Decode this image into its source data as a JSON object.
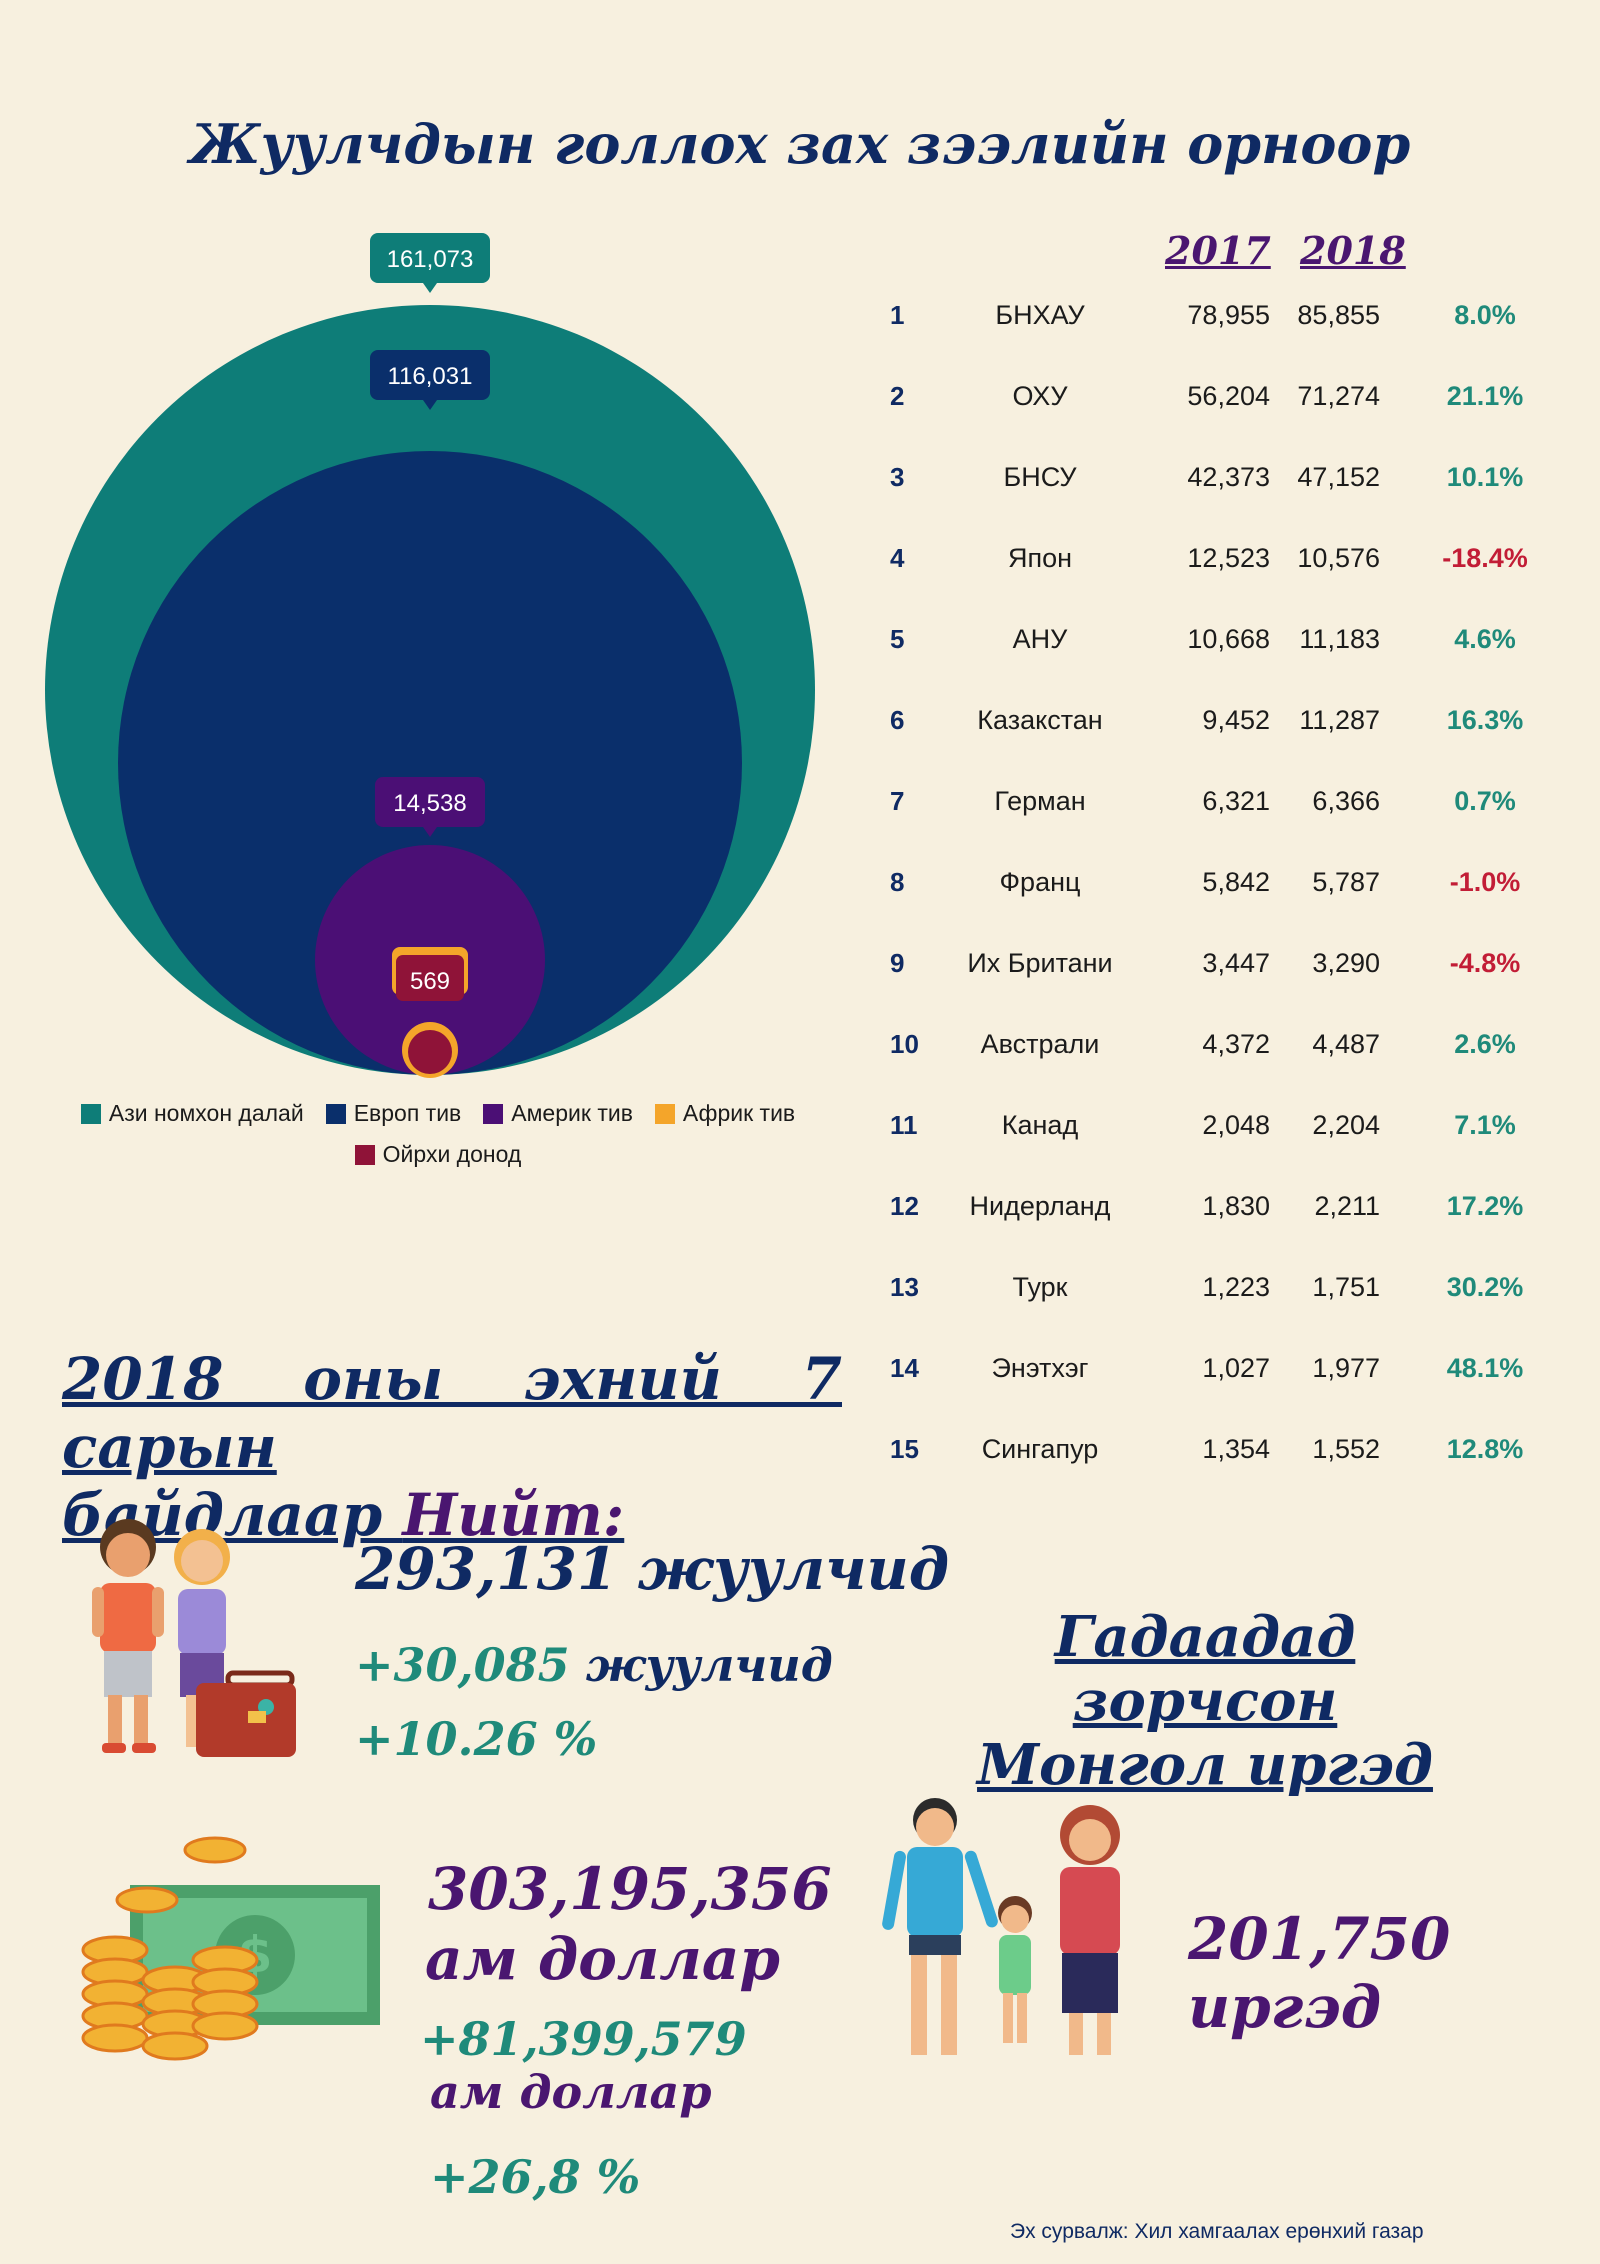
{
  "title": "Жуулчдын голлох зах зээлийн орноор",
  "chart_data": {
    "type": "bubble",
    "series": [
      {
        "name": "Ази номхон далай",
        "value": 161073,
        "color": "#0e7d78"
      },
      {
        "name": "Европ тив",
        "value": 116031,
        "color": "#0a2f6b"
      },
      {
        "name": "Америк тив",
        "value": 14538,
        "color": "#4b0f75"
      },
      {
        "name": "Африк тив",
        "value": "",
        "color": "#f4a52a"
      },
      {
        "name": "Ойрхи донод",
        "value": 569,
        "color": "#8f1338"
      }
    ],
    "labels": [
      "161,073",
      "116,031",
      "14,538",
      "569"
    ]
  },
  "table": {
    "col_2017": "2017",
    "col_2018": "2018",
    "rows": [
      {
        "rank": "1",
        "country": "БНХАУ",
        "v2017": "78,955",
        "v2018": "85,855",
        "pct": "8.0%"
      },
      {
        "rank": "2",
        "country": "ОХУ",
        "v2017": "56,204",
        "v2018": "71,274",
        "pct": "21.1%"
      },
      {
        "rank": "3",
        "country": "БНСУ",
        "v2017": "42,373",
        "v2018": "47,152",
        "pct": "10.1%"
      },
      {
        "rank": "4",
        "country": "Япон",
        "v2017": "12,523",
        "v2018": "10,576",
        "pct": "-18.4%"
      },
      {
        "rank": "5",
        "country": "АНУ",
        "v2017": "10,668",
        "v2018": "11,183",
        "pct": "4.6%"
      },
      {
        "rank": "6",
        "country": "Казакстан",
        "v2017": "9,452",
        "v2018": "11,287",
        "pct": "16.3%"
      },
      {
        "rank": "7",
        "country": "Герман",
        "v2017": "6,321",
        "v2018": "6,366",
        "pct": "0.7%"
      },
      {
        "rank": "8",
        "country": "Франц",
        "v2017": "5,842",
        "v2018": "5,787",
        "pct": "-1.0%"
      },
      {
        "rank": "9",
        "country": "Их Британи",
        "v2017": "3,447",
        "v2018": "3,290",
        "pct": "-4.8%"
      },
      {
        "rank": "10",
        "country": "Австрали",
        "v2017": "4,372",
        "v2018": "4,487",
        "pct": "2.6%"
      },
      {
        "rank": "11",
        "country": "Канад",
        "v2017": "2,048",
        "v2018": "2,204",
        "pct": "7.1%"
      },
      {
        "rank": "12",
        "country": "Нидерланд",
        "v2017": "1,830",
        "v2018": "2,211",
        "pct": "17.2%"
      },
      {
        "rank": "13",
        "country": "Турк",
        "v2017": "1,223",
        "v2018": "1,751",
        "pct": "30.2%"
      },
      {
        "rank": "14",
        "country": "Энэтхэг",
        "v2017": "1,027",
        "v2018": "1,977",
        "pct": "48.1%"
      },
      {
        "rank": "15",
        "country": "Сингапур",
        "v2017": "1,354",
        "v2018": "1,552",
        "pct": "12.8%"
      }
    ]
  },
  "summary": {
    "title_line1": "2018 оны эхний 7 сарын",
    "title_line2a": "байдлаар ",
    "title_line2b": "Нийт:",
    "tourists": "293,131 жуулчид",
    "tourists_plus": "+30,085",
    "tourists_plus_unit": "жуулчид",
    "tourists_pct": "+10.26 %",
    "revenue": "303,195,356",
    "revenue_unit": "ам доллар",
    "revenue_plus": "+81,399,579",
    "revenue_plus_unit": "ам доллар",
    "revenue_pct": "+26,8 %"
  },
  "mongol": {
    "title_line1": "Гадаадад зорчсон",
    "title_line2": "Монгол иргэд",
    "count": "201,750  иргэд"
  },
  "source": "Эх сурвалж: Хил хамгаалах ерөнхий газар"
}
